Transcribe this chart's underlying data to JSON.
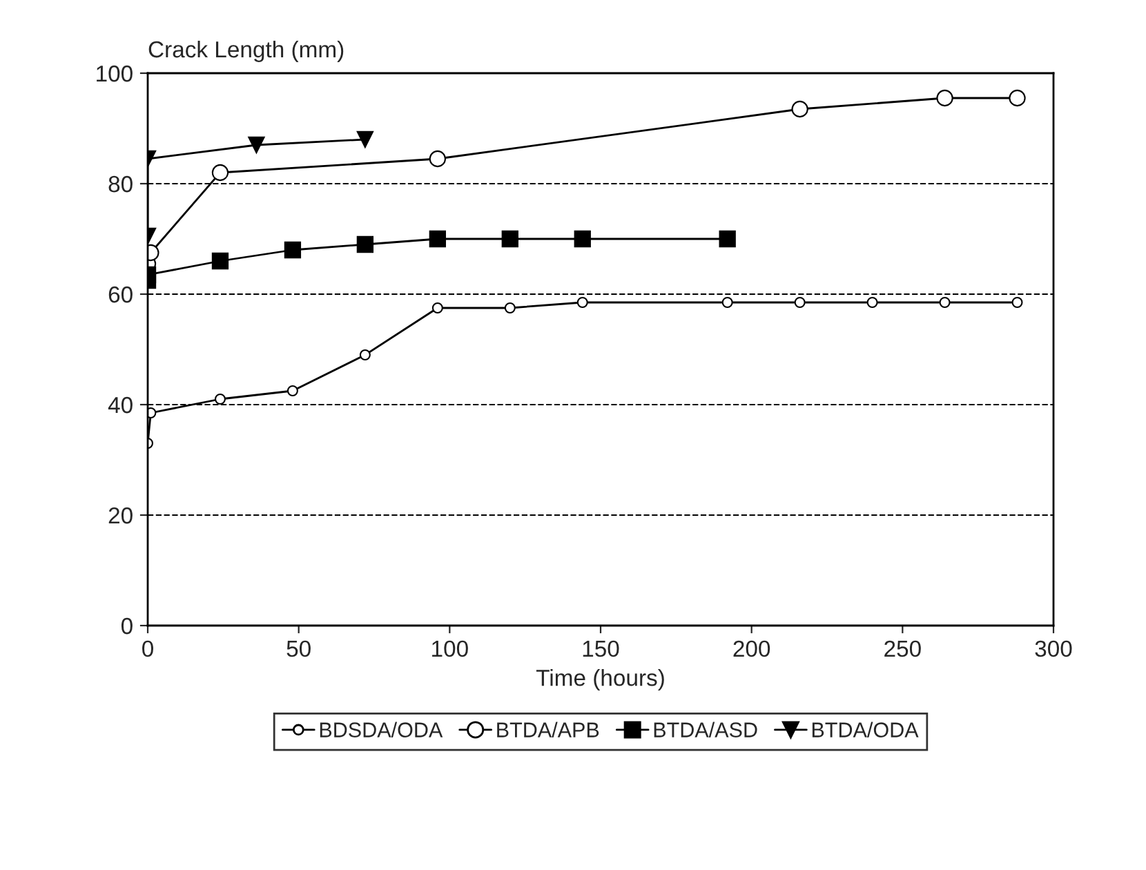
{
  "chart_data": {
    "type": "line",
    "xlabel": "Time (hours)",
    "ylabel": "Crack Length (mm)",
    "xlim": [
      0,
      300
    ],
    "xticks": [
      0,
      50,
      100,
      150,
      200,
      250,
      300
    ],
    "ylim": [
      0,
      100
    ],
    "yticks": [
      0,
      20,
      40,
      60,
      80,
      100
    ],
    "grid": "y",
    "legend": "bottom",
    "line_style": "solid",
    "series": [
      {
        "name": "BDSDA/ODA",
        "color": "#000000",
        "marker": "circle",
        "x": [
          0,
          1,
          24,
          48,
          72,
          96,
          120,
          144,
          192,
          216,
          240,
          264,
          288
        ],
        "values": [
          33,
          38.5,
          41,
          42.5,
          49,
          57.5,
          57.5,
          58.5,
          58.5,
          58.5,
          58.5,
          58.5,
          58.5
        ]
      },
      {
        "name": "BTDA/APB",
        "color": "#000000",
        "marker": "circle",
        "x": [
          0,
          1,
          24,
          96,
          216,
          264,
          288
        ],
        "values": [
          65.5,
          67.5,
          82,
          84.5,
          93.5,
          95.5,
          95.5
        ]
      },
      {
        "name": "BTDA/ASD",
        "color": "#000000",
        "marker": "square",
        "x": [
          0,
          0,
          24,
          48,
          72,
          96,
          120,
          144,
          192
        ],
        "values": [
          62.5,
          63.5,
          66,
          68,
          69,
          70,
          70,
          70,
          70
        ]
      },
      {
        "name": "BTDA/ODA",
        "color": "#000000",
        "marker": "triangle",
        "x": [
          0,
          0,
          36,
          72
        ],
        "values": [
          70.5,
          84.5,
          87,
          88
        ]
      }
    ]
  }
}
